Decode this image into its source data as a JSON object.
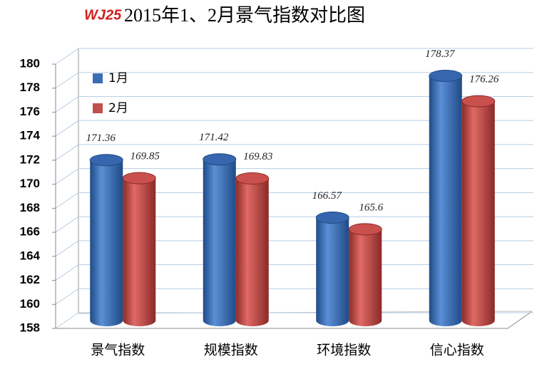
{
  "chart_data": {
    "type": "bar3d",
    "title": "2015年1、2月景气指数对比图",
    "logo": "WJ25",
    "categories": [
      "景气指数",
      "规模指数",
      "环境指数",
      "信心指数"
    ],
    "series": [
      {
        "name": "1月",
        "color": "#3a6db5",
        "values": [
          171.36,
          171.42,
          166.57,
          178.37
        ]
      },
      {
        "name": "2月",
        "color": "#c0504d",
        "values": [
          169.85,
          169.83,
          165.6,
          176.26
        ]
      }
    ],
    "ylim": [
      158,
      180
    ],
    "yticks": [
      158,
      160,
      162,
      164,
      166,
      168,
      170,
      172,
      174,
      176,
      178,
      180
    ],
    "grid": true,
    "legend": "top-left"
  }
}
